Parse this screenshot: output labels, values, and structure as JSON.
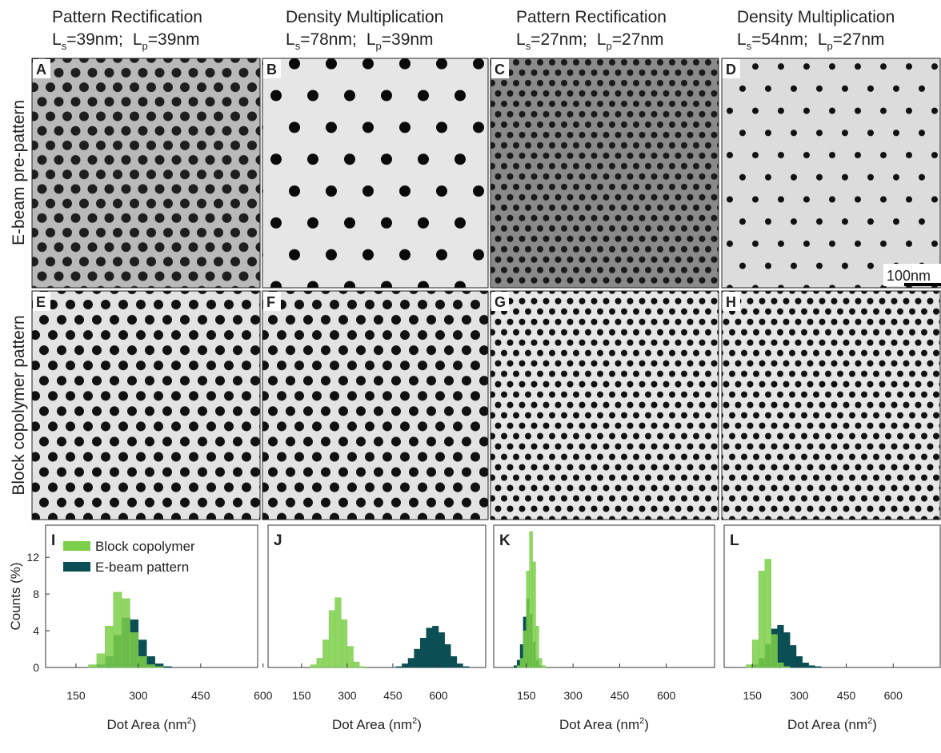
{
  "columns": [
    {
      "title": "Pattern Rectification",
      "subtitle": [
        [
          "L",
          "s",
          "=39nm;"
        ],
        [
          "L",
          "p",
          "=39nm"
        ]
      ]
    },
    {
      "title": "Density Multiplication",
      "subtitle": [
        [
          "L",
          "s",
          "=78nm;"
        ],
        [
          "L",
          "p",
          "=39nm"
        ]
      ]
    },
    {
      "title": "Pattern Rectification",
      "subtitle": [
        [
          "L",
          "s",
          "=27nm;"
        ],
        [
          "L",
          "p",
          "=27nm"
        ]
      ]
    },
    {
      "title": "Density Multiplication",
      "subtitle": [
        [
          "L",
          "s",
          "=54nm;"
        ],
        [
          "L",
          "p",
          "=27nm"
        ]
      ]
    }
  ],
  "row_labels": [
    "E-beam pre-pattern",
    "Block copolymer pattern"
  ],
  "panels": [
    "A",
    "B",
    "C",
    "D",
    "E",
    "F",
    "G",
    "H"
  ],
  "scale_bar": "100nm",
  "chart_data": [
    {
      "type": "histogram",
      "panel_label": "I",
      "x_label": [
        "Dot Area (nm",
        "2",
        ")"
      ],
      "y_label": "Counts (%)",
      "legend": "upper left",
      "bins": [
        180,
        200,
        220,
        240,
        260,
        280,
        300,
        320,
        340,
        360,
        380
      ],
      "series": [
        {
          "name": "E-beam pattern",
          "color": "#0b4f55",
          "values": [
            0,
            0.3,
            1.2,
            3.5,
            5.4,
            5.2,
            3.0,
            1.2,
            0.4,
            0.1
          ]
        },
        {
          "name": "Block copolymer",
          "color": "#7ccf4a",
          "values": [
            0.3,
            1.5,
            4.5,
            8.2,
            7.5,
            3.8,
            1.2,
            0.3,
            0.1,
            0
          ]
        }
      ],
      "xlim": [
        77,
        587
      ],
      "xticks": [
        150,
        300,
        450,
        600
      ],
      "ylim": [
        0,
        15.5
      ],
      "yticks": [
        0,
        4,
        8,
        12
      ]
    },
    {
      "type": "histogram",
      "panel_label": "J",
      "x_label": [
        "Dot Area (nm",
        "2",
        ")"
      ],
      "bins": [
        180,
        200,
        220,
        240,
        260,
        280,
        300,
        320,
        340,
        360,
        380,
        400,
        420,
        440,
        460,
        480,
        500,
        520,
        540,
        560,
        580,
        600,
        620,
        640,
        660,
        680,
        700
      ],
      "series": [
        {
          "name": "E-beam pattern",
          "color": "#0b4f55",
          "values": [
            0,
            0,
            0,
            0,
            0,
            0,
            0,
            0,
            0,
            0,
            0,
            0,
            0,
            0,
            0.1,
            0.4,
            1.0,
            2.0,
            3.2,
            4.3,
            4.5,
            3.8,
            2.5,
            1.2,
            0.4,
            0.1
          ]
        },
        {
          "name": "Block copolymer",
          "color": "#7ccf4a",
          "values": [
            0.3,
            1.0,
            3.0,
            6.2,
            7.6,
            5.2,
            2.3,
            0.6,
            0.1,
            0,
            0,
            0,
            0,
            0,
            0,
            0,
            0,
            0,
            0,
            0,
            0,
            0,
            0,
            0,
            0,
            0
          ]
        }
      ],
      "xlim": [
        40,
        755
      ],
      "xticks": [
        150,
        300,
        450,
        600
      ],
      "ylim": [
        0,
        15.5
      ]
    },
    {
      "type": "histogram",
      "panel_label": "K",
      "x_label": [
        "Dot Area (nm",
        "2",
        ")"
      ],
      "bins": [
        110,
        120,
        130,
        140,
        150,
        160,
        170,
        180,
        190,
        200,
        210,
        220,
        230
      ],
      "series": [
        {
          "name": "E-beam pattern",
          "color": "#0b4f55",
          "values": [
            0.2,
            0.8,
            2.5,
            5.5,
            7.5,
            5.8,
            2.8,
            0.8,
            0.2,
            0,
            0,
            0
          ]
        },
        {
          "name": "Block copolymer",
          "color": "#7ccf4a",
          "values": [
            0,
            0.2,
            1.0,
            4.0,
            10.5,
            14.8,
            11.5,
            4.5,
            1.0,
            0.2,
            0,
            0
          ]
        }
      ],
      "xlim": [
        45,
        755
      ],
      "xticks": [
        150,
        300,
        450,
        600
      ],
      "ylim": [
        0,
        15.5
      ]
    },
    {
      "type": "histogram",
      "panel_label": "L",
      "x_label": [
        "Dot Area (nm",
        "2",
        ")"
      ],
      "bins": [
        130,
        150,
        170,
        190,
        210,
        230,
        250,
        270,
        290,
        310,
        330,
        350,
        370
      ],
      "series": [
        {
          "name": "E-beam pattern",
          "color": "#0b4f55",
          "values": [
            0,
            0.3,
            1.0,
            2.5,
            4.2,
            4.6,
            3.8,
            2.4,
            1.2,
            0.5,
            0.2,
            0.1
          ]
        },
        {
          "name": "Block copolymer",
          "color": "#7ccf4a",
          "values": [
            0.3,
            3.0,
            10.5,
            11.8,
            3.6,
            0.5,
            0.1,
            0,
            0,
            0,
            0,
            0
          ]
        }
      ],
      "xlim": [
        60,
        750
      ],
      "xticks": [
        150,
        300,
        450,
        600
      ],
      "ylim": [
        0,
        15.5
      ]
    }
  ]
}
